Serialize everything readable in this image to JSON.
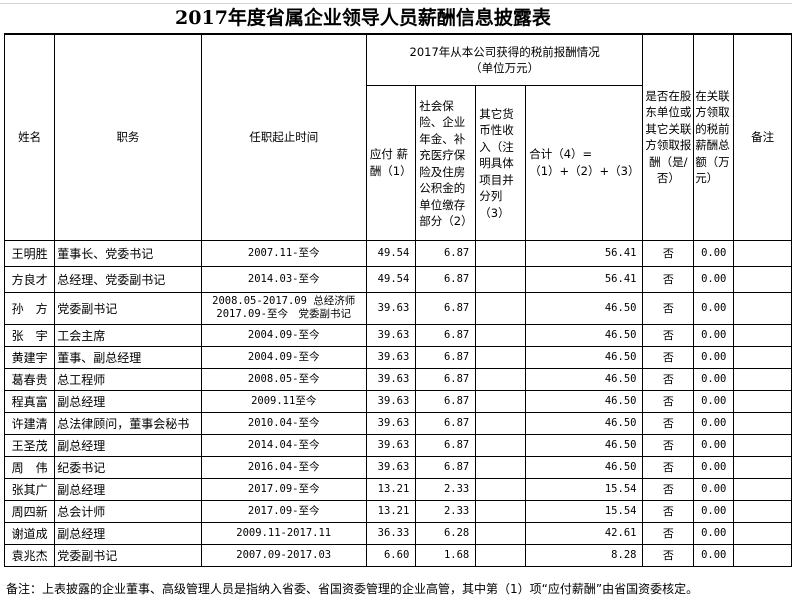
{
  "title": "2017年度省属企业领导人员薪酬信息披露表",
  "headers": {
    "name": "姓名",
    "position": "职务",
    "tenure": "任职起止时间",
    "group": "2017年从本公司获得的税前报酬情况（单位万元）",
    "col1": "应付 薪酬（1）",
    "col2": "社会保险、企业年金、补充医疗保险及住房公积金的单位缴存部分（2）",
    "col3": "其它货币性收入（注明具体项目并分列（3）",
    "col4": "合计（4）=（1）+（2）+（3）",
    "shareholder": "是否在股东单位或其它关联方领取报酬（是/否）",
    "related": "在关联方领取的税前薪酬总额（万元）",
    "remark": "备注"
  },
  "rows": [
    {
      "name": "王明胜",
      "position": "董事长、党委书记",
      "tenure": "2007.11-至今",
      "pay": "49.54",
      "ins": "6.87",
      "other": "",
      "total": "56.41",
      "sh": "否",
      "rel": "0.00"
    },
    {
      "name": "方良才",
      "position": "总经理、党委副书记",
      "tenure": "2014.03-至今",
      "pay": "49.54",
      "ins": "6.87",
      "other": "",
      "total": "56.41",
      "sh": "否",
      "rel": "0.00"
    },
    {
      "name": "孙　方",
      "position": "党委副书记",
      "tenure": "2008.05-2017.09 总经济师",
      "tenure2": "2017.09-至今　党委副书记",
      "pay": "39.63",
      "ins": "6.87",
      "other": "",
      "total": "46.50",
      "sh": "否",
      "rel": "0.00"
    },
    {
      "name": "张　宇",
      "position": "工会主席",
      "tenure": "2004.09-至今",
      "pay": "39.63",
      "ins": "6.87",
      "other": "",
      "total": "46.50",
      "sh": "否",
      "rel": "0.00"
    },
    {
      "name": "黄建宇",
      "position": "董事、副总经理",
      "tenure": "2004.09-至今",
      "pay": "39.63",
      "ins": "6.87",
      "other": "",
      "total": "46.50",
      "sh": "否",
      "rel": "0.00"
    },
    {
      "name": "葛春贵",
      "position": "总工程师",
      "tenure": "2008.05-至今",
      "pay": "39.63",
      "ins": "6.87",
      "other": "",
      "total": "46.50",
      "sh": "否",
      "rel": "0.00"
    },
    {
      "name": "程真富",
      "position": "副总经理",
      "tenure": "2009.11至今",
      "pay": "39.63",
      "ins": "6.87",
      "other": "",
      "total": "46.50",
      "sh": "否",
      "rel": "0.00"
    },
    {
      "name": "许建清",
      "position": "总法律顾问，董事会秘书",
      "tenure": "2010.04-至今",
      "pay": "39.63",
      "ins": "6.87",
      "other": "",
      "total": "46.50",
      "sh": "否",
      "rel": "0.00"
    },
    {
      "name": "王圣茂",
      "position": "副总经理",
      "tenure": "2014.04-至今",
      "pay": "39.63",
      "ins": "6.87",
      "other": "",
      "total": "46.50",
      "sh": "否",
      "rel": "0.00"
    },
    {
      "name": "周　伟",
      "position": "纪委书记",
      "tenure": "2016.04-至今",
      "pay": "39.63",
      "ins": "6.87",
      "other": "",
      "total": "46.50",
      "sh": "否",
      "rel": "0.00"
    },
    {
      "name": "张其广",
      "position": "副总经理",
      "tenure": "2017.09-至今",
      "pay": "13.21",
      "ins": "2.33",
      "other": "",
      "total": "15.54",
      "sh": "否",
      "rel": "0.00"
    },
    {
      "name": "周四新",
      "position": "总会计师",
      "tenure": "2017.09-至今",
      "pay": "13.21",
      "ins": "2.33",
      "other": "",
      "total": "15.54",
      "sh": "否",
      "rel": "0.00"
    },
    {
      "name": "谢道成",
      "position": "副总经理",
      "tenure": "2009.11-2017.11",
      "pay": "36.33",
      "ins": "6.28",
      "other": "",
      "total": "42.61",
      "sh": "否",
      "rel": "0.00"
    },
    {
      "name": "袁兆杰",
      "position": "党委副书记",
      "tenure": "2007.09-2017.03",
      "pay": "6.60",
      "ins": "1.68",
      "other": "",
      "total": "8.28",
      "sh": "否",
      "rel": "0.00"
    }
  ],
  "note": "备注：上表披露的企业董事、高级管理人员是指纳入省委、省国资委管理的企业高管，其中第（1）项“应付薪酬”由省国资委核定。"
}
